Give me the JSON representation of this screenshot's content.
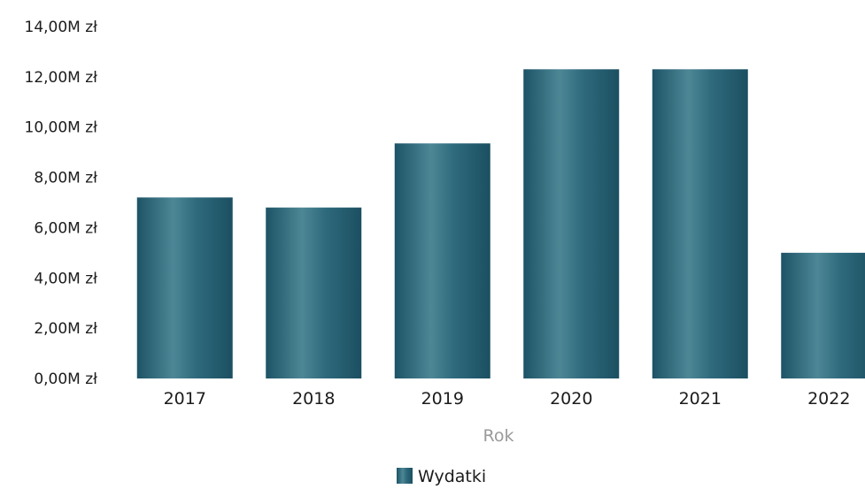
{
  "chart_data": {
    "type": "bar",
    "categories": [
      "2017",
      "2018",
      "2019",
      "2020",
      "2021",
      "2022"
    ],
    "series": [
      {
        "name": "Wydatki",
        "values": [
          7.2,
          6.8,
          9.35,
          12.3,
          12.3,
          5.0
        ],
        "color": "#235c6e"
      }
    ],
    "xlabel": "Rok",
    "ylabel": "",
    "ylim": [
      0,
      14
    ],
    "yticks": [
      {
        "value": 0,
        "label": "0,00M zł"
      },
      {
        "value": 2,
        "label": "2,00M zł"
      },
      {
        "value": 4,
        "label": "4,00M zł"
      },
      {
        "value": 6,
        "label": "6,00M zł"
      },
      {
        "value": 8,
        "label": "8,00M zł"
      },
      {
        "value": 10,
        "label": "10,00M zł"
      },
      {
        "value": 12,
        "label": "12,00M zł"
      },
      {
        "value": 14,
        "label": "14,00M zł"
      }
    ],
    "grid": false,
    "legend": "bottom-center"
  }
}
